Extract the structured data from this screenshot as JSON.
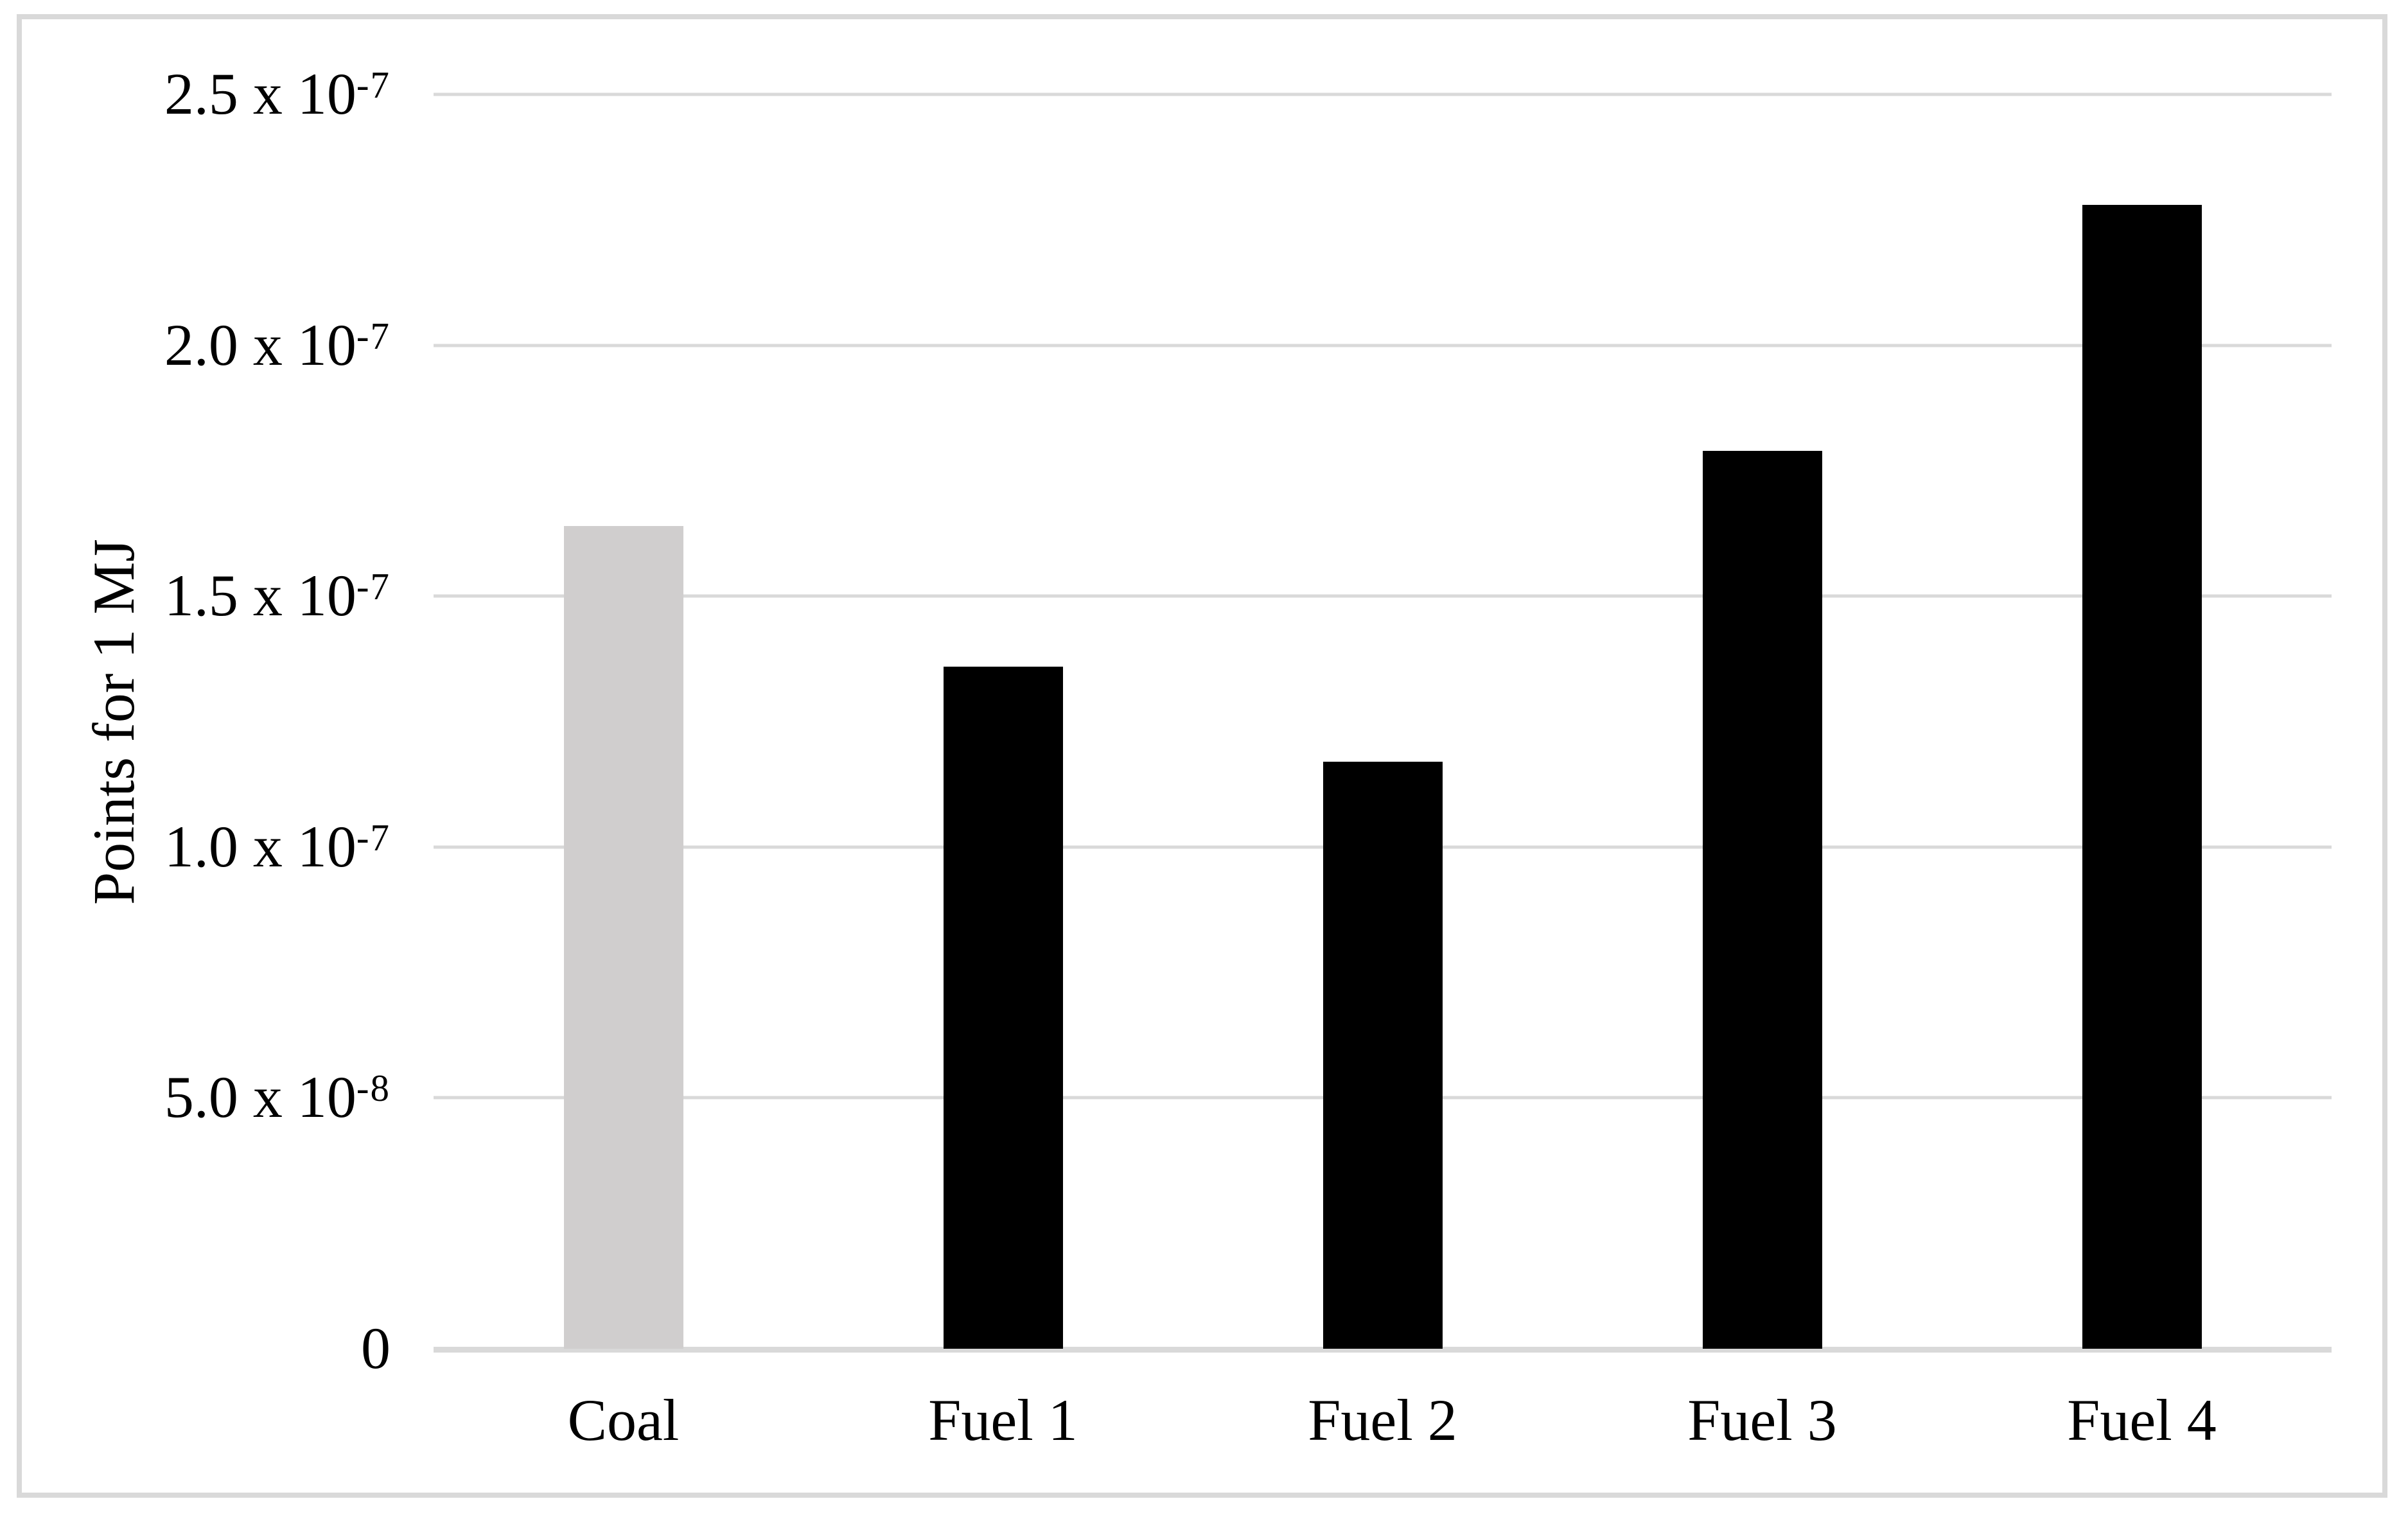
{
  "chart_data": {
    "type": "bar",
    "title": "",
    "xlabel": "",
    "ylabel": "Points for 1 MJ",
    "ylim": [
      0,
      2.5e-07
    ],
    "grid": true,
    "legend": false,
    "categories": [
      "Coal",
      "Fuel 1",
      "Fuel 2",
      "Fuel 3",
      "Fuel 4"
    ],
    "values": [
      1.64e-07,
      1.36e-07,
      1.17e-07,
      1.79e-07,
      2.28e-07
    ],
    "bars": [
      {
        "label": "Coal",
        "value": 1.64e-07,
        "color": "#D0CECE"
      },
      {
        "label": "Fuel 1",
        "value": 1.36e-07,
        "color": "#000000"
      },
      {
        "label": "Fuel 2",
        "value": 1.17e-07,
        "color": "#000000"
      },
      {
        "label": "Fuel 3",
        "value": 1.79e-07,
        "color": "#000000"
      },
      {
        "label": "Fuel 4",
        "value": 2.28e-07,
        "color": "#000000"
      }
    ],
    "yticks": [
      {
        "mantissa": "0",
        "exp": "",
        "value": 0
      },
      {
        "mantissa": "5.0 x 10",
        "exp": "-8",
        "value": 5e-08
      },
      {
        "mantissa": "1.0 x 10",
        "exp": "-7",
        "value": 1e-07
      },
      {
        "mantissa": "1.5 x 10",
        "exp": "-7",
        "value": 1.5e-07
      },
      {
        "mantissa": "2.0 x 10",
        "exp": "-7",
        "value": 2e-07
      },
      {
        "mantissa": "2.5 x 10",
        "exp": "-7",
        "value": 2.5e-07
      }
    ],
    "colors": {
      "gridline": "#D9D9D9",
      "axis_line": "#D9D9D9",
      "figure_border": "#D9D9D9",
      "bar_default": "#000000",
      "bar_coal": "#D0CECE"
    }
  }
}
